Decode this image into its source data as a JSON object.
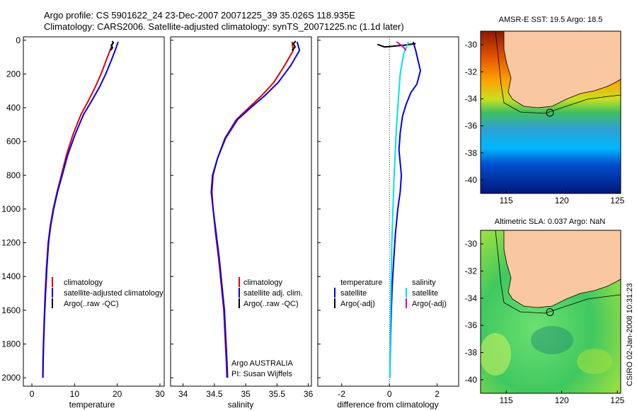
{
  "header": {
    "line1": "Argo profile: CS 5901622_24 23-Dec-2007 20071225_39 35.026S 118.935E",
    "line2": "Climatology: CARS2006. Satellite-adjusted climatology: synTS_20071225.nc (1.1d later)"
  },
  "side_label": "CSIRO 02-Jan-2008 10:31:23",
  "colors": {
    "climatology": "#e00000",
    "satellite": "#0000ee",
    "argo": "#000000",
    "sal_sat": "#00e5e5",
    "sal_argo": "#cc00cc",
    "land": "#fac8a0"
  },
  "chart_data": [
    {
      "type": "line",
      "xlabel": "temperature",
      "ylabel": "",
      "xlim": [
        -2,
        31
      ],
      "ylim": [
        2050,
        -20
      ],
      "xticks": [
        "0",
        "10",
        "20",
        "30"
      ],
      "yticks": [
        "0",
        "200",
        "400",
        "600",
        "800",
        "1000",
        "1200",
        "1400",
        "1600",
        "1800",
        "2000"
      ],
      "legend": [
        "climatology",
        "satellite-adjusted climatology",
        "Argo(..raw -QC)"
      ],
      "series": [
        {
          "name": "climatology",
          "color": "#e00000",
          "x": [
            19.1,
            18.3,
            17.4,
            16.2,
            14.8,
            13.2,
            11.5,
            9.6,
            8.1,
            6.9,
            5.9,
            5.0,
            4.3,
            3.8,
            3.4,
            3.1,
            2.9,
            2.7,
            2.6,
            2.55
          ],
          "y": [
            10,
            60,
            120,
            200,
            280,
            360,
            440,
            560,
            680,
            800,
            900,
            1000,
            1100,
            1200,
            1350,
            1500,
            1650,
            1800,
            1900,
            2000
          ]
        },
        {
          "name": "satellite-adjusted climatology",
          "color": "#0000ee",
          "x": [
            20.2,
            19.5,
            18.6,
            17.3,
            15.8,
            14.0,
            12.1,
            10.1,
            8.4,
            7.1,
            6.0,
            5.1,
            4.4,
            3.9,
            3.5,
            3.2,
            2.95,
            2.75,
            2.65,
            2.6
          ],
          "y": [
            10,
            60,
            120,
            200,
            280,
            360,
            440,
            560,
            680,
            800,
            900,
            1000,
            1100,
            1200,
            1350,
            1500,
            1650,
            1800,
            1900,
            2000
          ]
        },
        {
          "name": "Argo(..raw -QC)",
          "color": "#000000",
          "x": [
            18.8,
            19.1,
            18.6,
            18.9,
            18.4
          ],
          "y": [
            5,
            15,
            30,
            45,
            60
          ]
        }
      ]
    },
    {
      "type": "line",
      "xlabel": "salinity",
      "xlim": [
        33.8,
        36.05
      ],
      "ylim": [
        2050,
        -20
      ],
      "xticks": [
        "34",
        "34.5",
        "35",
        "35.5",
        "36"
      ],
      "legend": [
        "climatology",
        "satellite adj. clim.",
        "Argo(..raw -QC)"
      ],
      "annotation": [
        "Argo AUSTRALIA",
        "PI: Susan Wijffels"
      ],
      "series": [
        {
          "name": "climatology",
          "color": "#e00000",
          "x": [
            35.74,
            35.76,
            35.62,
            35.45,
            35.25,
            35.05,
            34.85,
            34.67,
            34.55,
            34.48,
            34.46,
            34.48,
            34.52,
            34.57,
            34.61,
            34.65,
            34.67,
            34.69,
            34.7
          ],
          "y": [
            10,
            60,
            150,
            250,
            330,
            400,
            470,
            580,
            700,
            800,
            900,
            1000,
            1150,
            1300,
            1450,
            1600,
            1750,
            1900,
            2000
          ]
        },
        {
          "name": "satellite adj. clim.",
          "color": "#0000ee",
          "x": [
            35.82,
            35.86,
            35.72,
            35.52,
            35.3,
            35.08,
            34.87,
            34.68,
            34.55,
            34.47,
            34.45,
            34.48,
            34.53,
            34.58,
            34.62,
            34.66,
            34.68,
            34.7,
            34.71
          ],
          "y": [
            10,
            60,
            150,
            250,
            330,
            400,
            470,
            580,
            700,
            800,
            900,
            1000,
            1150,
            1300,
            1450,
            1600,
            1750,
            1900,
            2000
          ]
        },
        {
          "name": "Argo(..raw -QC)",
          "color": "#000000",
          "x": [
            35.8,
            35.76,
            35.79,
            35.74
          ],
          "y": [
            5,
            20,
            40,
            60
          ]
        }
      ]
    },
    {
      "type": "line",
      "xlabel": "difference from climatology",
      "xlim": [
        -3,
        2.9
      ],
      "ylim": [
        2050,
        -20
      ],
      "xticks": [
        "-2",
        "0",
        "2"
      ],
      "legend_columns": [
        {
          "title": "temperature",
          "items": [
            "satellite",
            "Argo(-adj)"
          ]
        },
        {
          "title": "salinity",
          "items": [
            "satellite",
            "Argo(-adj)"
          ]
        }
      ],
      "series": [
        {
          "name": "temperature satellite",
          "color": "#0000ee",
          "x": [
            1.0,
            1.1,
            1.3,
            1.15,
            0.9,
            0.7,
            0.55,
            0.45,
            0.4,
            0.5,
            0.45,
            0.35,
            0.25,
            0.18,
            0.12,
            0.08,
            0.05,
            0.03,
            0.02
          ],
          "y": [
            10,
            60,
            180,
            260,
            310,
            380,
            450,
            550,
            650,
            800,
            900,
            1000,
            1150,
            1300,
            1450,
            1600,
            1750,
            1900,
            2000
          ]
        },
        {
          "name": "temperature Argo(-adj)",
          "color": "#000000",
          "x": [
            -0.5,
            -0.2,
            0.6,
            1.1
          ],
          "y": [
            25,
            40,
            30,
            20
          ]
        },
        {
          "name": "salinity satellite",
          "color": "#00e5e5",
          "x": [
            0.8,
            0.6,
            0.45,
            0.4,
            0.35,
            0.3,
            0.25,
            0.2,
            0.15,
            0.1,
            0.07,
            0.04,
            0.02
          ],
          "y": [
            10,
            80,
            200,
            300,
            400,
            500,
            650,
            800,
            1000,
            1200,
            1450,
            1700,
            2000
          ]
        },
        {
          "name": "salinity Argo(-adj)",
          "color": "#cc00cc",
          "x": [
            0.3,
            0.55,
            0.7
          ],
          "y": [
            10,
            35,
            60
          ]
        }
      ]
    },
    {
      "type": "heatmap",
      "title": "AMSR-E SST: 19.5 Argo: 18.5",
      "xlim": [
        112.7,
        125.3
      ],
      "ylim": [
        -41,
        -29
      ],
      "xticks": [
        "115",
        "120",
        "125"
      ],
      "yticks": [
        "-30",
        "-32",
        "-34",
        "-36",
        "-38",
        "-40"
      ],
      "marker": {
        "lon": 118.935,
        "lat": -35.026
      }
    },
    {
      "type": "heatmap",
      "title": "Altimetric SLA: 0.037 Argo: NaN",
      "xlim": [
        112.7,
        125.3
      ],
      "ylim": [
        -41,
        -29
      ],
      "xticks": [
        "115",
        "120",
        "125"
      ],
      "yticks": [
        "-30",
        "-32",
        "-34",
        "-36",
        "-38",
        "-40"
      ],
      "marker": {
        "lon": 118.935,
        "lat": -35.026
      }
    }
  ]
}
